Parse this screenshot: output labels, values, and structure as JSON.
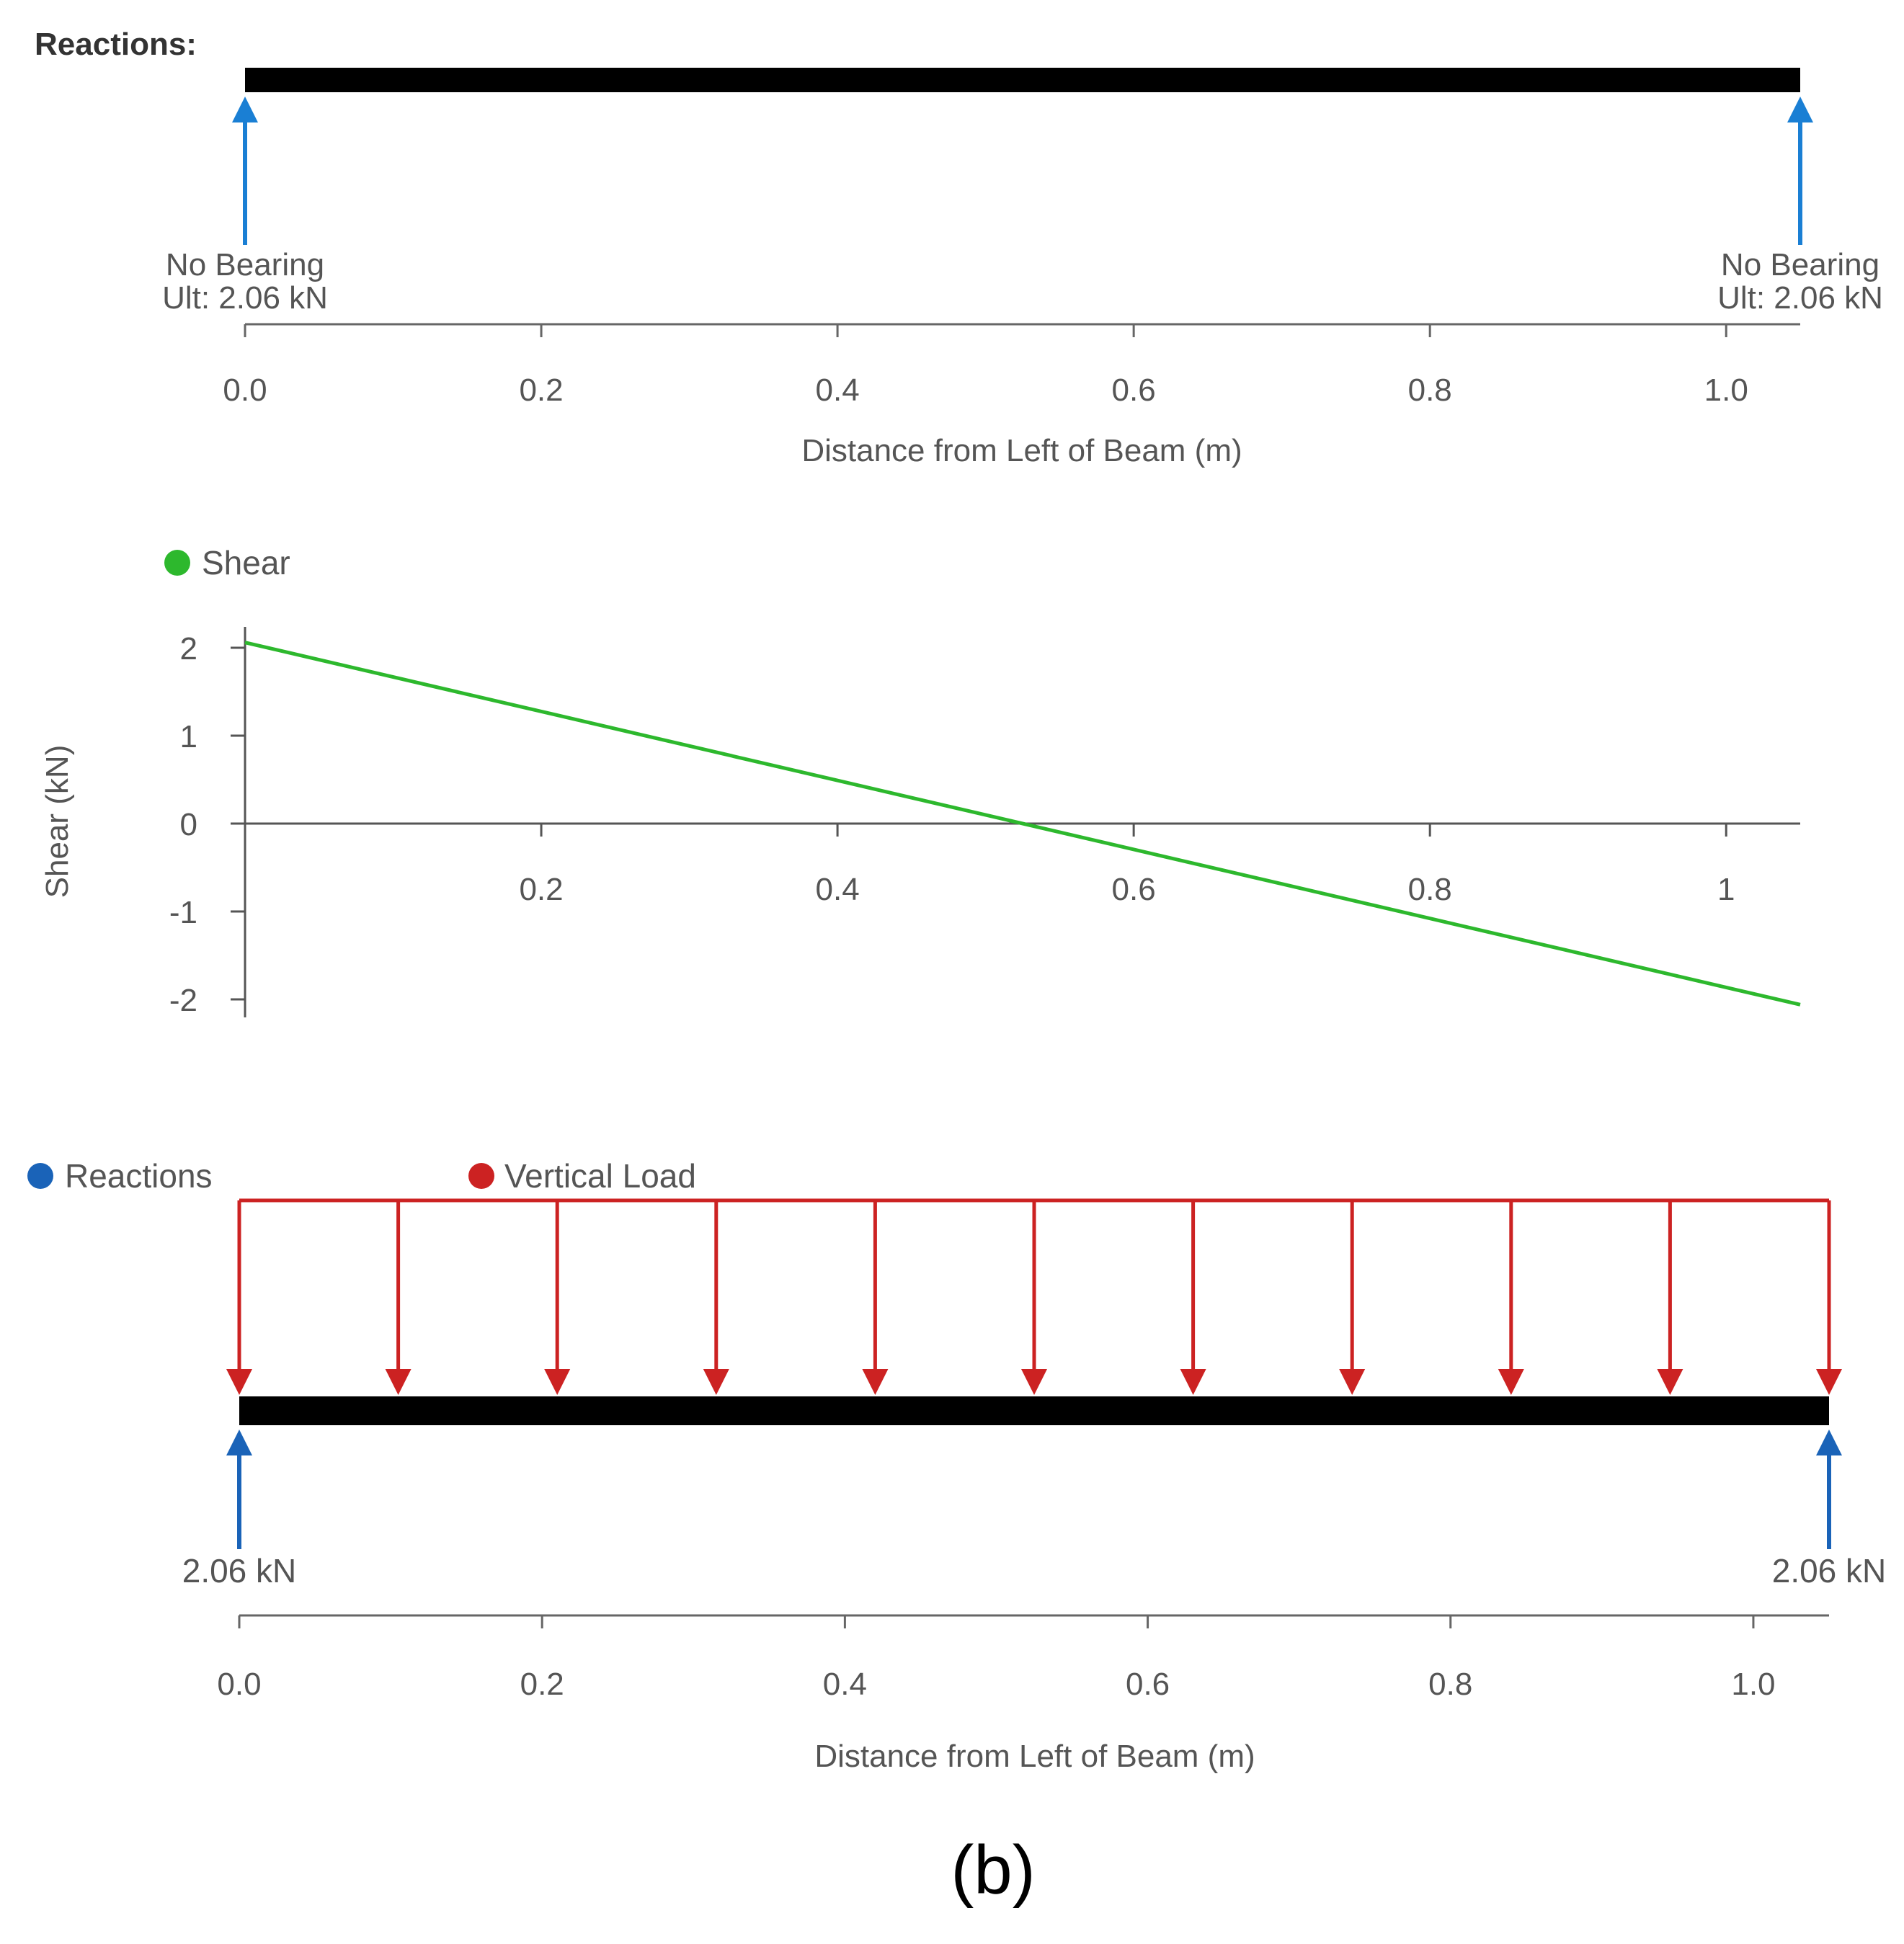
{
  "figure_caption": "(b)",
  "chart_data": [
    {
      "type": "beam-diagram",
      "panel": "reactions",
      "heading": "Reactions:",
      "xlabel": "Distance from Left of Beam (m)",
      "xlim": [
        0,
        1.05
      ],
      "xticks": [
        "0.0",
        "0.2",
        "0.4",
        "0.6",
        "0.8",
        "1.0"
      ],
      "supports": [
        {
          "x": 0.0,
          "label1": "No Bearing",
          "label2": "Ult: 2.06 kN"
        },
        {
          "x": 1.05,
          "label1": "No Bearing",
          "label2": "Ult: 2.06 kN"
        }
      ],
      "colors": {
        "beam": "#000000",
        "reaction": "#1a7fd4",
        "axis": "#666666"
      }
    },
    {
      "type": "line",
      "panel": "shear",
      "legend": [
        {
          "name": "Shear",
          "color": "#2db82d"
        }
      ],
      "ylabel": "Shear (kN)",
      "xlim": [
        0,
        1.05
      ],
      "ylim": [
        -2.2,
        2.2
      ],
      "xticks": [
        "0.2",
        "0.4",
        "0.6",
        "0.8",
        "1"
      ],
      "yticks": [
        "2",
        "1",
        "0",
        "-1",
        "-2"
      ],
      "series": [
        {
          "name": "Shear",
          "x": [
            0.0,
            1.05
          ],
          "y": [
            2.06,
            -2.06
          ]
        }
      ],
      "colors": {
        "line": "#2db82d",
        "axis": "#555555"
      }
    },
    {
      "type": "beam-diagram",
      "panel": "loads",
      "legend": [
        {
          "name": "Reactions",
          "color": "#1a63b8"
        },
        {
          "name": "Vertical Load",
          "color": "#cc2222"
        }
      ],
      "xlabel": "Distance from Left of Beam (m)",
      "xlim": [
        0,
        1.05
      ],
      "xticks": [
        "0.0",
        "0.2",
        "0.4",
        "0.6",
        "0.8",
        "1.0"
      ],
      "distributed_load": {
        "x_start": 0.0,
        "x_end": 1.05,
        "arrow_count": 11
      },
      "reactions": [
        {
          "x": 0.0,
          "label": "2.06 kN"
        },
        {
          "x": 1.05,
          "label": "2.06 kN"
        }
      ],
      "colors": {
        "beam": "#000000",
        "reaction": "#1a63b8",
        "load": "#cc2222",
        "axis": "#666666"
      }
    }
  ]
}
